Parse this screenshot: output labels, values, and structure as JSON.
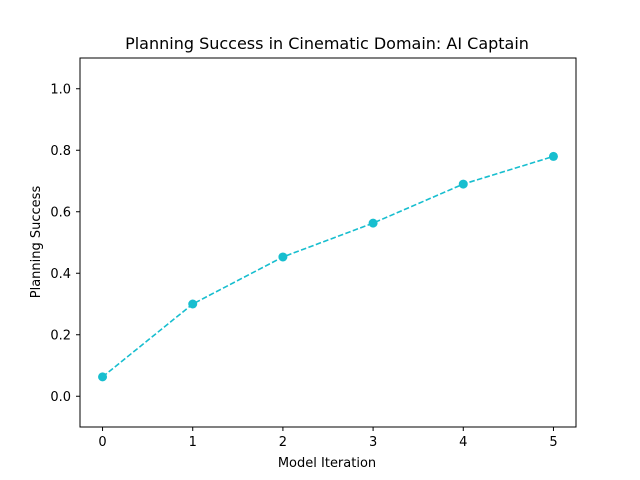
{
  "chart_data": {
    "type": "line",
    "title": "Planning Success in Cinematic Domain: AI Captain",
    "xlabel": "Model Iteration",
    "ylabel": "Planning Success",
    "x": [
      0,
      1,
      2,
      3,
      4,
      5
    ],
    "series": [
      {
        "values": [
          0.063,
          0.3,
          0.453,
          0.563,
          0.69,
          0.78
        ]
      }
    ],
    "xlim": [
      -0.25,
      5.25
    ],
    "ylim": [
      -0.1,
      1.1
    ],
    "xticks": [
      "0",
      "1",
      "2",
      "3",
      "4",
      "5"
    ],
    "yticks": [
      "0.0",
      "0.2",
      "0.4",
      "0.6",
      "0.8",
      "1.0"
    ],
    "line_style": "dashed",
    "marker": "circle",
    "color": "#17becf",
    "grid": false,
    "legend": "none"
  }
}
